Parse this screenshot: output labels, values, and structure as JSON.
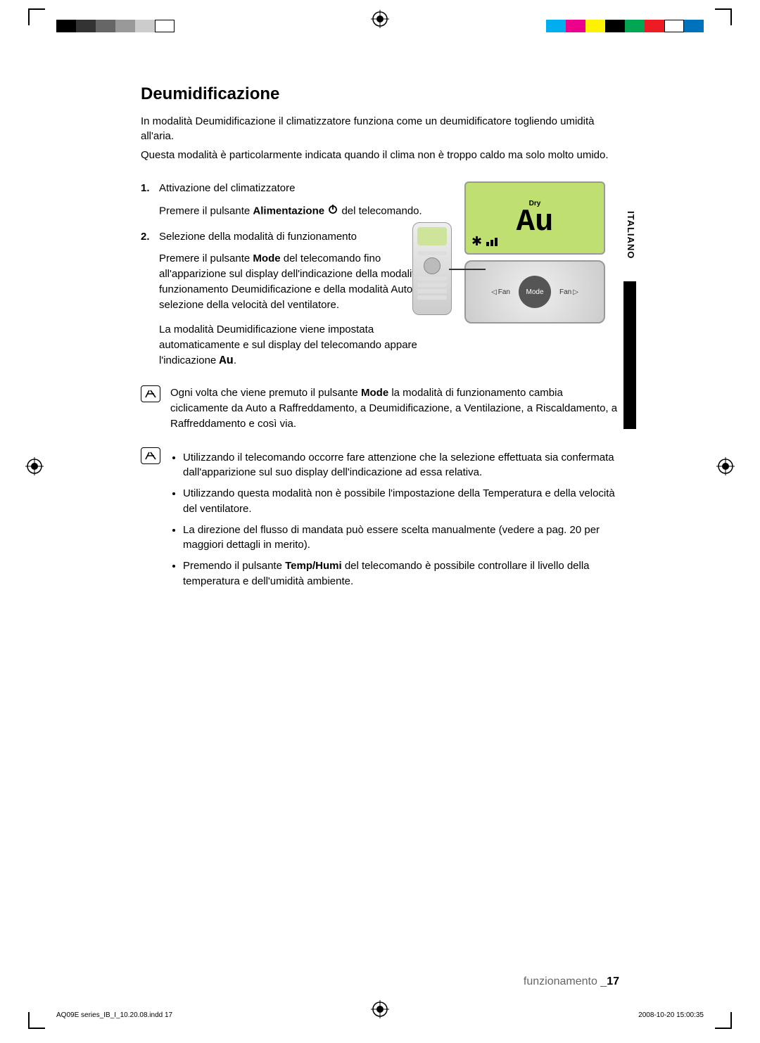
{
  "title": "Deumidificazione",
  "intro1": "In modalità Deumidificazione il climatizzatore funziona come un deumidificatore togliendo umidità all'aria.",
  "intro2": "Questa modalità è particolarmente indicata quando il clima non è troppo caldo ma solo molto umido.",
  "step1_num": "1.",
  "step1_title": "Attivazione del climatizzatore",
  "step1_body_a": "Premere il pulsante ",
  "step1_body_b": "Alimentazione",
  "step1_body_c": " del telecomando.",
  "step2_num": "2.",
  "step2_title": "Selezione della modalità di funzionamento",
  "step2_body_a": "Premere il pulsante ",
  "step2_body_b": "Mode",
  "step2_body_c": " del telecomando fino all'apparizione sul display dell'indicazione della modalità di funzionamento Deumidificazione e della modalità Auto di selezione della velocità del ventilatore.",
  "step2_body2_a": "La modalità Deumidificazione viene impostata automaticamente e sul display del telecomando appare l'indicazione ",
  "step2_body2_b": ".",
  "note1_a": "Ogni volta che viene premuto il pulsante ",
  "note1_b": "Mode",
  "note1_c": " la modalità di funzionamento cambia ciclicamente da Auto a Raffreddamento, a Deumidificazione, a Ventilazione, a Riscaldamento, a Raffreddamento e così via.",
  "bullets": {
    "b1": "Utilizzando il telecomando occorre fare attenzione che la selezione effettuata sia confermata dall'apparizione sul suo display dell'indicazione ad essa relativa.",
    "b2": "Utilizzando questa modalità non è possibile l'impostazione della Temperatura e della velocità del ventilatore.",
    "b3": "La direzione del flusso di mandata può essere scelta manualmente (vedere a pag. 20 per maggiori dettagli in merito).",
    "b4_a": "Premendo il pulsante ",
    "b4_b": "Temp/Humi",
    "b4_c": " del telecomando è possibile controllare il livello della temperatura e dell'umidità ambiente."
  },
  "side_tab": "ITALIANO",
  "footer_section": "funzionamento _",
  "footer_page": "17",
  "print_left": "AQ09E series_IB_I_10.20.08.indd   17",
  "print_right": "2008-10-20   15:00:35",
  "lcd": {
    "dry": "Dry",
    "au": "Au",
    "mode_btn": "Mode",
    "fan_l": "Fan",
    "fan_r": "Fan"
  },
  "colorbar_left": [
    "#000000",
    "#333333",
    "#666666",
    "#999999",
    "#cccccc",
    "#ffffff"
  ],
  "colorbar_right": [
    "#00aeef",
    "#ec008c",
    "#fff200",
    "#000000",
    "#00a651",
    "#ed1c24",
    "#ffffff",
    "#0072bc"
  ]
}
